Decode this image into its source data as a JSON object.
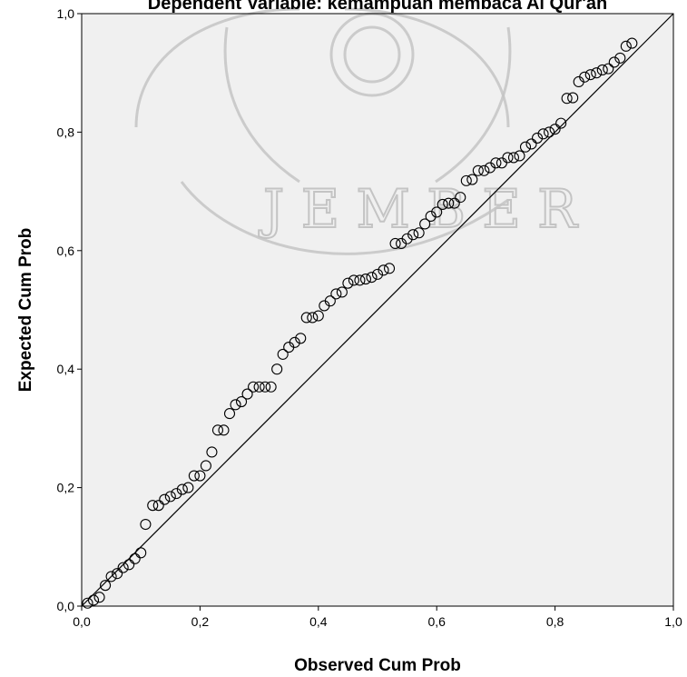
{
  "chart_data": {
    "type": "scatter",
    "title": "Dependent Variable: kemampuan membaca Al Qur'an",
    "xlabel": "Observed Cum Prob",
    "ylabel": "Expected Cum Prob",
    "xlim": [
      0,
      1
    ],
    "ylim": [
      0,
      1
    ],
    "x_ticks": [
      "0,0",
      "0,2",
      "0,4",
      "0,6",
      "0,8",
      "1,0"
    ],
    "y_ticks": [
      "0,0",
      "0,2",
      "0,4",
      "0,6",
      "0,8",
      "1,0"
    ],
    "reference_line": {
      "from": [
        0,
        0
      ],
      "to": [
        1,
        1
      ]
    },
    "grid": false,
    "colors": {
      "plot_background": "#f0f0f0",
      "marker": "#000000",
      "line": "#000000"
    },
    "marker": "open-circle",
    "points": [
      [
        0.01,
        0.005
      ],
      [
        0.02,
        0.01
      ],
      [
        0.03,
        0.015
      ],
      [
        0.04,
        0.035
      ],
      [
        0.05,
        0.05
      ],
      [
        0.06,
        0.055
      ],
      [
        0.07,
        0.065
      ],
      [
        0.08,
        0.07
      ],
      [
        0.09,
        0.08
      ],
      [
        0.1,
        0.09
      ],
      [
        0.108,
        0.138
      ],
      [
        0.12,
        0.17
      ],
      [
        0.13,
        0.17
      ],
      [
        0.14,
        0.18
      ],
      [
        0.15,
        0.185
      ],
      [
        0.16,
        0.19
      ],
      [
        0.17,
        0.197
      ],
      [
        0.18,
        0.2
      ],
      [
        0.19,
        0.22
      ],
      [
        0.2,
        0.22
      ],
      [
        0.21,
        0.237
      ],
      [
        0.22,
        0.26
      ],
      [
        0.23,
        0.297
      ],
      [
        0.24,
        0.297
      ],
      [
        0.25,
        0.325
      ],
      [
        0.26,
        0.34
      ],
      [
        0.27,
        0.345
      ],
      [
        0.28,
        0.358
      ],
      [
        0.29,
        0.37
      ],
      [
        0.3,
        0.37
      ],
      [
        0.31,
        0.37
      ],
      [
        0.32,
        0.37
      ],
      [
        0.33,
        0.4
      ],
      [
        0.34,
        0.425
      ],
      [
        0.35,
        0.437
      ],
      [
        0.36,
        0.445
      ],
      [
        0.37,
        0.452
      ],
      [
        0.38,
        0.487
      ],
      [
        0.39,
        0.487
      ],
      [
        0.4,
        0.49
      ],
      [
        0.41,
        0.507
      ],
      [
        0.42,
        0.515
      ],
      [
        0.43,
        0.527
      ],
      [
        0.44,
        0.53
      ],
      [
        0.45,
        0.545
      ],
      [
        0.46,
        0.55
      ],
      [
        0.47,
        0.55
      ],
      [
        0.48,
        0.552
      ],
      [
        0.49,
        0.555
      ],
      [
        0.5,
        0.56
      ],
      [
        0.51,
        0.567
      ],
      [
        0.52,
        0.57
      ],
      [
        0.53,
        0.612
      ],
      [
        0.54,
        0.612
      ],
      [
        0.55,
        0.62
      ],
      [
        0.56,
        0.627
      ],
      [
        0.57,
        0.63
      ],
      [
        0.58,
        0.645
      ],
      [
        0.59,
        0.658
      ],
      [
        0.6,
        0.665
      ],
      [
        0.61,
        0.678
      ],
      [
        0.62,
        0.68
      ],
      [
        0.63,
        0.68
      ],
      [
        0.64,
        0.69
      ],
      [
        0.65,
        0.718
      ],
      [
        0.66,
        0.72
      ],
      [
        0.67,
        0.735
      ],
      [
        0.68,
        0.735
      ],
      [
        0.69,
        0.74
      ],
      [
        0.7,
        0.748
      ],
      [
        0.71,
        0.748
      ],
      [
        0.72,
        0.757
      ],
      [
        0.73,
        0.757
      ],
      [
        0.74,
        0.76
      ],
      [
        0.75,
        0.775
      ],
      [
        0.76,
        0.78
      ],
      [
        0.77,
        0.79
      ],
      [
        0.78,
        0.797
      ],
      [
        0.79,
        0.8
      ],
      [
        0.8,
        0.805
      ],
      [
        0.81,
        0.815
      ],
      [
        0.82,
        0.857
      ],
      [
        0.83,
        0.858
      ],
      [
        0.84,
        0.885
      ],
      [
        0.85,
        0.893
      ],
      [
        0.86,
        0.897
      ],
      [
        0.87,
        0.9
      ],
      [
        0.88,
        0.905
      ],
      [
        0.89,
        0.907
      ],
      [
        0.9,
        0.918
      ],
      [
        0.91,
        0.925
      ],
      [
        0.92,
        0.945
      ],
      [
        0.93,
        0.95
      ]
    ]
  }
}
